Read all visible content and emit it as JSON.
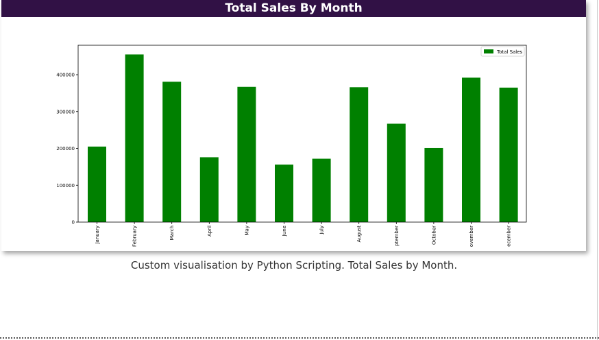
{
  "card": {
    "title": "Total Sales By Month"
  },
  "caption": "Custom visualisation by Python Scripting. Total Sales by Month.",
  "colors": {
    "header_bg": "#311145",
    "bar": "#008000"
  },
  "chart_data": {
    "type": "bar",
    "title": "",
    "xlabel": "",
    "ylabel": "",
    "categories": [
      "January",
      "February",
      "March",
      "April",
      "May",
      "June",
      "July",
      "August",
      "September",
      "October",
      "November",
      "December"
    ],
    "tick_labels": [
      "January",
      "February",
      "March",
      "April",
      "May",
      "June",
      "July",
      "August",
      "ptember",
      "October",
      "ovember",
      "ecember"
    ],
    "series": [
      {
        "name": "Total Sales",
        "values": [
          205000,
          455000,
          381000,
          176000,
          367000,
          156000,
          172000,
          366000,
          267000,
          201000,
          392000,
          365000
        ]
      }
    ],
    "ylim": [
      0,
      480000
    ],
    "yticks": [
      0,
      100000,
      200000,
      300000,
      400000
    ],
    "ytick_labels": [
      "0",
      "100000",
      "200000",
      "300000",
      "400000"
    ],
    "grid": false,
    "legend": "top-right"
  }
}
